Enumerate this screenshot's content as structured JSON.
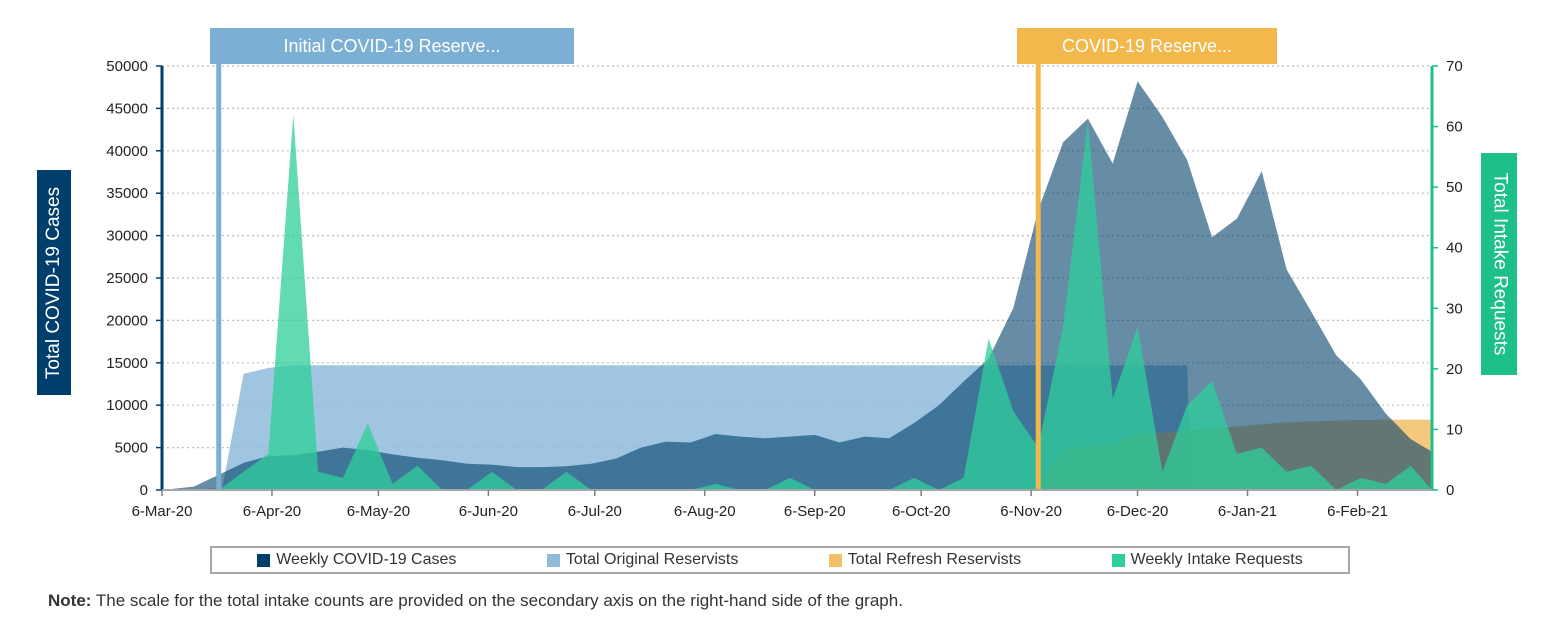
{
  "chart_data": {
    "type": "area",
    "x_labels": [
      "6-Mar-20",
      "6-Apr-20",
      "6-May-20",
      "6-Jun-20",
      "6-Jul-20",
      "6-Aug-20",
      "6-Sep-20",
      "6-Oct-20",
      "6-Nov-20",
      "6-Dec-20",
      "6-Jan-21",
      "6-Feb-21"
    ],
    "x_range": [
      "2020-03-06",
      "2021-02-27"
    ],
    "y_left": {
      "label": "Total COVID-19 Cases",
      "range": [
        0,
        50000
      ],
      "ticks": [
        "0",
        "5000",
        "10000",
        "15000",
        "20000",
        "25000",
        "30000",
        "35000",
        "40000",
        "45000",
        "50000"
      ]
    },
    "y_right": {
      "label": "Total Intake Requests",
      "range": [
        0,
        70
      ],
      "ticks": [
        "0",
        "10",
        "20",
        "30",
        "40",
        "50",
        "60",
        "70"
      ]
    },
    "grid": "horizontal dotted",
    "legend_position": "bottom",
    "annotations": [
      {
        "label": "Initial COVID-19 Reserve...",
        "date": "2020-03-22",
        "color": "#7bafd4"
      },
      {
        "label": "COVID-19 Reserve...",
        "date": "2020-11-08",
        "color": "#f2b84b"
      }
    ],
    "series": [
      {
        "name": "Total Original Reservists",
        "axis": "left",
        "color": "#8fbbdb",
        "points": [
          [
            "2020-03-06",
            0
          ],
          [
            "2020-03-23",
            200
          ],
          [
            "2020-03-29",
            13700
          ],
          [
            "2020-04-05",
            14400
          ],
          [
            "2020-04-12",
            14700
          ],
          [
            "2020-11-01",
            14700
          ],
          [
            "2020-12-20",
            14700
          ],
          [
            "2020-12-21",
            0
          ]
        ]
      },
      {
        "name": "Total Refresh Reservists",
        "axis": "left",
        "color": "#f2c069",
        "points": [
          [
            "2020-11-01",
            0
          ],
          [
            "2020-11-08",
            300
          ],
          [
            "2020-11-15",
            4800
          ],
          [
            "2020-11-29",
            5500
          ],
          [
            "2020-12-06",
            6500
          ],
          [
            "2020-12-20",
            7000
          ],
          [
            "2021-01-03",
            7500
          ],
          [
            "2021-01-17",
            8000
          ],
          [
            "2021-01-31",
            8200
          ],
          [
            "2021-02-14",
            8300
          ],
          [
            "2021-02-27",
            8300
          ]
        ]
      },
      {
        "name": "Weekly COVID-19 Cases",
        "axis": "left",
        "color": "#003f6b",
        "points": [
          [
            "2020-03-06",
            0
          ],
          [
            "2020-03-15",
            400
          ],
          [
            "2020-03-22",
            1800
          ],
          [
            "2020-03-29",
            3200
          ],
          [
            "2020-04-05",
            4000
          ],
          [
            "2020-04-12",
            4100
          ],
          [
            "2020-04-19",
            4500
          ],
          [
            "2020-04-26",
            5000
          ],
          [
            "2020-05-03",
            4700
          ],
          [
            "2020-05-10",
            4200
          ],
          [
            "2020-05-17",
            3800
          ],
          [
            "2020-05-24",
            3500
          ],
          [
            "2020-05-31",
            3100
          ],
          [
            "2020-06-07",
            3000
          ],
          [
            "2020-06-14",
            2700
          ],
          [
            "2020-06-21",
            2700
          ],
          [
            "2020-06-28",
            2800
          ],
          [
            "2020-07-05",
            3100
          ],
          [
            "2020-07-12",
            3700
          ],
          [
            "2020-07-19",
            5000
          ],
          [
            "2020-07-26",
            5700
          ],
          [
            "2020-08-02",
            5600
          ],
          [
            "2020-08-09",
            6600
          ],
          [
            "2020-08-16",
            6300
          ],
          [
            "2020-08-23",
            6100
          ],
          [
            "2020-08-30",
            6300
          ],
          [
            "2020-09-06",
            6500
          ],
          [
            "2020-09-13",
            5600
          ],
          [
            "2020-09-20",
            6300
          ],
          [
            "2020-09-27",
            6100
          ],
          [
            "2020-10-04",
            7900
          ],
          [
            "2020-10-11",
            10000
          ],
          [
            "2020-10-18",
            12800
          ],
          [
            "2020-10-25",
            15500
          ],
          [
            "2020-11-01",
            21500
          ],
          [
            "2020-11-08",
            33000
          ],
          [
            "2020-11-15",
            41000
          ],
          [
            "2020-11-22",
            43800
          ],
          [
            "2020-11-29",
            38500
          ],
          [
            "2020-12-06",
            48200
          ],
          [
            "2020-12-13",
            44000
          ],
          [
            "2020-12-20",
            38900
          ],
          [
            "2020-12-27",
            29800
          ],
          [
            "2021-01-03",
            32000
          ],
          [
            "2021-01-10",
            37600
          ],
          [
            "2021-01-17",
            26000
          ],
          [
            "2021-01-24",
            21000
          ],
          [
            "2021-01-31",
            15900
          ],
          [
            "2021-02-07",
            13000
          ],
          [
            "2021-02-14",
            9000
          ],
          [
            "2021-02-21",
            6000
          ],
          [
            "2021-02-27",
            4500
          ]
        ]
      },
      {
        "name": "Weekly Intake Requests",
        "axis": "right",
        "color": "#2ecf9a",
        "points": [
          [
            "2020-03-06",
            0
          ],
          [
            "2020-03-22",
            0
          ],
          [
            "2020-03-29",
            3
          ],
          [
            "2020-04-05",
            6
          ],
          [
            "2020-04-12",
            62
          ],
          [
            "2020-04-19",
            3
          ],
          [
            "2020-04-26",
            2
          ],
          [
            "2020-05-03",
            11
          ],
          [
            "2020-05-10",
            1
          ],
          [
            "2020-05-17",
            4
          ],
          [
            "2020-05-24",
            0
          ],
          [
            "2020-05-31",
            0
          ],
          [
            "2020-06-07",
            3
          ],
          [
            "2020-06-14",
            0
          ],
          [
            "2020-06-21",
            0
          ],
          [
            "2020-06-28",
            3
          ],
          [
            "2020-07-05",
            0
          ],
          [
            "2020-07-12",
            0
          ],
          [
            "2020-07-19",
            0
          ],
          [
            "2020-07-26",
            0
          ],
          [
            "2020-08-02",
            0
          ],
          [
            "2020-08-09",
            1
          ],
          [
            "2020-08-16",
            0
          ],
          [
            "2020-08-23",
            0
          ],
          [
            "2020-08-30",
            2
          ],
          [
            "2020-09-06",
            0
          ],
          [
            "2020-09-13",
            0
          ],
          [
            "2020-09-20",
            0
          ],
          [
            "2020-09-27",
            0
          ],
          [
            "2020-10-04",
            2
          ],
          [
            "2020-10-11",
            0
          ],
          [
            "2020-10-18",
            2
          ],
          [
            "2020-10-25",
            25
          ],
          [
            "2020-11-01",
            13
          ],
          [
            "2020-11-08",
            7
          ],
          [
            "2020-11-15",
            27
          ],
          [
            "2020-11-22",
            61
          ],
          [
            "2020-11-29",
            15
          ],
          [
            "2020-12-06",
            27
          ],
          [
            "2020-12-13",
            3
          ],
          [
            "2020-12-20",
            14
          ],
          [
            "2020-12-27",
            18
          ],
          [
            "2021-01-03",
            6
          ],
          [
            "2021-01-10",
            7
          ],
          [
            "2021-01-17",
            3
          ],
          [
            "2021-01-24",
            4
          ],
          [
            "2021-01-31",
            0
          ],
          [
            "2021-02-07",
            2
          ],
          [
            "2021-02-14",
            1
          ],
          [
            "2021-02-21",
            4
          ],
          [
            "2021-02-27",
            0
          ]
        ]
      }
    ]
  },
  "legend": {
    "items": [
      {
        "label": "Weekly COVID-19 Cases",
        "color": "#003f6b"
      },
      {
        "label": "Total Original Reservists",
        "color": "#8fbbdb"
      },
      {
        "label": "Total Refresh Reservists",
        "color": "#f2c069"
      },
      {
        "label": "Weekly Intake Requests",
        "color": "#2ecf9a"
      }
    ]
  },
  "note": {
    "label": "Note:",
    "text": "The scale for the total intake counts are provided on the secondary axis on the right-hand side of the graph."
  },
  "colors": {
    "left_axis": "#003f6b",
    "right_axis": "#1dbf8a"
  }
}
